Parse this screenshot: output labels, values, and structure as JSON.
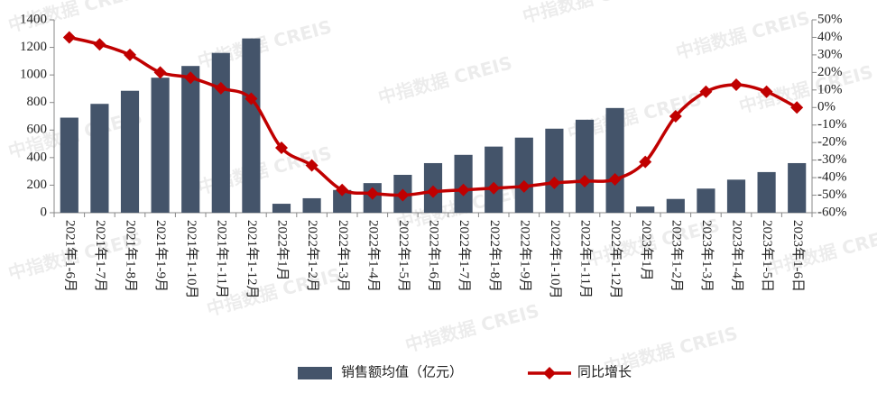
{
  "chart_data": {
    "type": "bar-line",
    "watermark": "中指数据 CREIS",
    "categories": [
      "2021年1-6月",
      "2021年1-7月",
      "2021年1-8月",
      "2021年1-9月",
      "2021年1-10月",
      "2021年1-11月",
      "2021年1-12月",
      "2022年1月",
      "2022年1-2月",
      "2022年1-3月",
      "2022年1-4月",
      "2022年1-5月",
      "2022年1-6月",
      "2022年1-7月",
      "2022年1-8月",
      "2022年1-9月",
      "2022年1-10月",
      "2022年1-11月",
      "2022年1-12月",
      "2023年1月",
      "2023年1-2月",
      "2023年1-3月",
      "2023年1-4月",
      "2023年1-5日",
      "2023年1-6日"
    ],
    "series": [
      {
        "name": "销售额均值（亿元）",
        "type": "bar",
        "color": "#44546a",
        "values": [
          690,
          790,
          885,
          980,
          1065,
          1160,
          1265,
          65,
          105,
          165,
          215,
          275,
          360,
          420,
          480,
          545,
          610,
          675,
          760,
          45,
          100,
          175,
          240,
          295,
          360
        ]
      },
      {
        "name": "同比增长",
        "type": "line",
        "color": "#c00000",
        "axis": "y2",
        "values": [
          40,
          36,
          30,
          20,
          17,
          11,
          5,
          -23,
          -33,
          -47,
          -49,
          -50,
          -48,
          -47,
          -46,
          -45,
          -43,
          -42,
          -41,
          -31,
          -5,
          9,
          13,
          9,
          0
        ]
      }
    ],
    "ylim": [
      0,
      1400
    ],
    "yticks": [
      0,
      200,
      400,
      600,
      800,
      1000,
      1200,
      1400
    ],
    "y2lim": [
      -60,
      50
    ],
    "y2ticks": [
      {
        "value": -60,
        "label": "-60%"
      },
      {
        "value": -50,
        "label": "-50%"
      },
      {
        "value": -40,
        "label": "-40%"
      },
      {
        "value": -30,
        "label": "-30%"
      },
      {
        "value": -20,
        "label": "-20%"
      },
      {
        "value": -10,
        "label": "-10%"
      },
      {
        "value": 0,
        "label": "0%"
      },
      {
        "value": 10,
        "label": "10%"
      },
      {
        "value": 20,
        "label": "20%"
      },
      {
        "value": 30,
        "label": "30%"
      },
      {
        "value": 40,
        "label": "40%"
      },
      {
        "value": 50,
        "label": "50%"
      }
    ]
  }
}
